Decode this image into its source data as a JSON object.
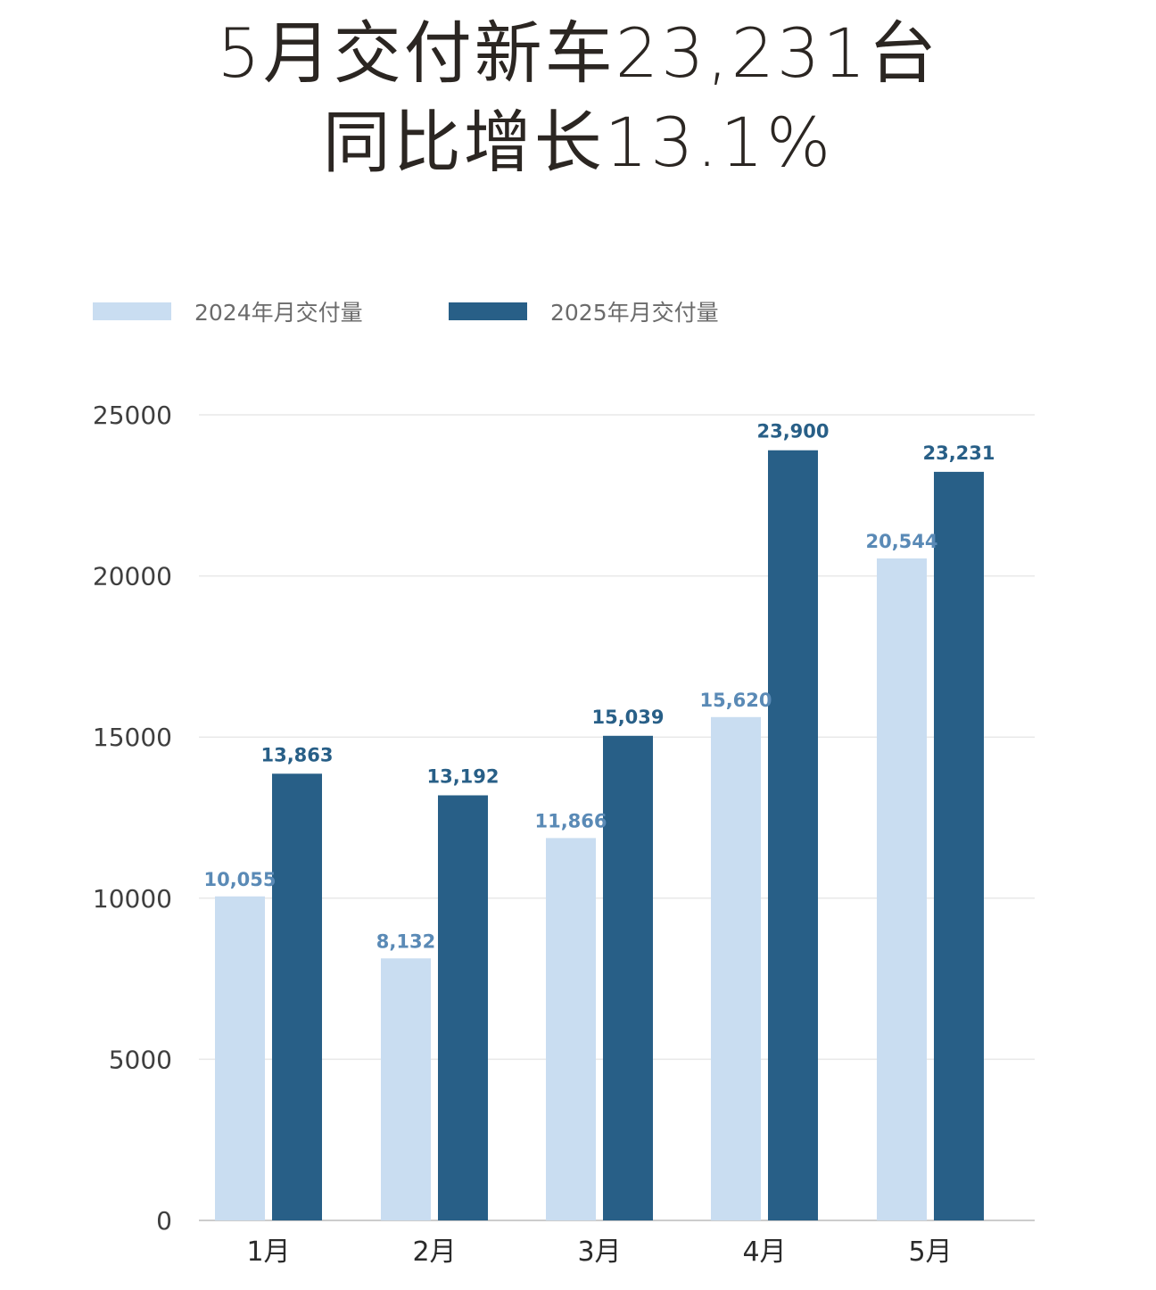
{
  "title": {
    "line1": "5月交付新车23,231台",
    "line2": "同比增长13.1%"
  },
  "colors": {
    "series_2024": "#c9ddf1",
    "series_2025": "#285f87",
    "label_2024": "#5a8ab6",
    "label_2025": "#285f87",
    "grid": "#e8e8e8",
    "axis": "#bbbbbb"
  },
  "legend": [
    {
      "label": "2024年月交付量",
      "color": "#c9ddf1"
    },
    {
      "label": "2025年月交付量",
      "color": "#285f87"
    }
  ],
  "chart_data": {
    "type": "bar",
    "title": "5月交付新车23,231台 同比增长13.1%",
    "xlabel": "",
    "ylabel": "",
    "categories": [
      "1月",
      "2月",
      "3月",
      "4月",
      "5月"
    ],
    "series": [
      {
        "name": "2024年月交付量",
        "values": [
          10055,
          8132,
          11866,
          15620,
          20544
        ],
        "labels": [
          "10,055",
          "8,132",
          "11,866",
          "15,620",
          "20,544"
        ],
        "color": "#c9ddf1"
      },
      {
        "name": "2025年月交付量",
        "values": [
          13863,
          13192,
          15039,
          23900,
          23231
        ],
        "labels": [
          "13,863",
          "13,192",
          "15,039",
          "23,900",
          "23,231"
        ],
        "color": "#285f87"
      }
    ],
    "ylim": [
      0,
      25000
    ],
    "yticks": [
      0,
      5000,
      10000,
      15000,
      20000,
      25000
    ],
    "ytick_labels": [
      "0",
      "5000",
      "10000",
      "15000",
      "20000",
      "25000"
    ],
    "grid": true,
    "legend_position": "top-left"
  }
}
